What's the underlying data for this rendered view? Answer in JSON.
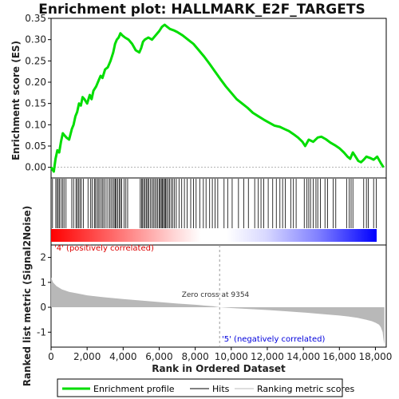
{
  "chart_data": {
    "type": "line",
    "title": "Enrichment plot: HALLMARK_E2F_TARGETS",
    "xlabel": "Rank in Ordered Dataset",
    "es_ylabel": "Enrichment score (ES)",
    "metric_ylabel": "Ranked list metric (Signal2Noise)",
    "xlim": [
      0,
      18600
    ],
    "es_ylim": [
      -0.025,
      0.35
    ],
    "metric_ylim": [
      -1.6,
      2.5
    ],
    "x_ticks": [
      0,
      2000,
      4000,
      6000,
      8000,
      10000,
      12000,
      14000,
      16000,
      18000
    ],
    "x_tick_labels": [
      "0",
      "2,000",
      "4,000",
      "6,000",
      "8,000",
      "10,000",
      "12,000",
      "14,000",
      "16,000",
      "18,000"
    ],
    "es_ticks": [
      0.0,
      0.05,
      0.1,
      0.15,
      0.2,
      0.25,
      0.3,
      0.35
    ],
    "es_tick_labels": [
      "0.00",
      "0.05",
      "0.10",
      "0.15",
      "0.20",
      "0.25",
      "0.30",
      "0.35"
    ],
    "metric_ticks": [
      -1,
      0,
      1,
      2
    ],
    "metric_tick_labels": [
      "-1",
      "0",
      "1",
      "2"
    ],
    "grid": false,
    "legend_position": "bottom",
    "colors": {
      "enrichment": "#00dd00",
      "hits": "#000000",
      "metric_fill": "#b8b8b8",
      "positive_label": "#dd0000",
      "negative_label": "#0000dd",
      "zero_cross": "#999999"
    },
    "series": [
      {
        "name": "Enrichment profile",
        "x": [
          0,
          150,
          250,
          350,
          450,
          550,
          650,
          750,
          850,
          1000,
          1150,
          1250,
          1350,
          1450,
          1550,
          1650,
          1750,
          1850,
          2000,
          2150,
          2250,
          2350,
          2500,
          2650,
          2750,
          2850,
          3000,
          3150,
          3300,
          3450,
          3550,
          3650,
          3750,
          3850,
          3950,
          4100,
          4300,
          4500,
          4700,
          4900,
          5000,
          5100,
          5200,
          5400,
          5600,
          5800,
          6000,
          6150,
          6300,
          6450,
          6600,
          6800,
          7000,
          7300,
          7600,
          7900,
          8200,
          8500,
          8800,
          9100,
          9400,
          9700,
          10000,
          10300,
          10600,
          10900,
          11200,
          11500,
          11800,
          12100,
          12400,
          12700,
          12950,
          13200,
          13450,
          13700,
          13950,
          14100,
          14300,
          14550,
          14800,
          15000,
          15250,
          15500,
          15750,
          16000,
          16250,
          16450,
          16600,
          16750,
          16900,
          17050,
          17200,
          17350,
          17500,
          17700,
          17900,
          18100,
          18300,
          18450
        ],
        "es": [
          0.0,
          -0.01,
          0.02,
          0.04,
          0.035,
          0.06,
          0.08,
          0.075,
          0.07,
          0.065,
          0.09,
          0.1,
          0.12,
          0.13,
          0.15,
          0.145,
          0.165,
          0.16,
          0.15,
          0.17,
          0.16,
          0.18,
          0.19,
          0.205,
          0.215,
          0.21,
          0.23,
          0.235,
          0.25,
          0.27,
          0.29,
          0.3,
          0.305,
          0.315,
          0.31,
          0.305,
          0.3,
          0.29,
          0.275,
          0.27,
          0.28,
          0.295,
          0.3,
          0.305,
          0.3,
          0.31,
          0.32,
          0.33,
          0.335,
          0.33,
          0.325,
          0.322,
          0.318,
          0.31,
          0.3,
          0.29,
          0.275,
          0.26,
          0.243,
          0.225,
          0.207,
          0.19,
          0.175,
          0.16,
          0.15,
          0.14,
          0.128,
          0.12,
          0.112,
          0.105,
          0.098,
          0.095,
          0.09,
          0.085,
          0.078,
          0.07,
          0.06,
          0.05,
          0.065,
          0.06,
          0.07,
          0.072,
          0.066,
          0.058,
          0.052,
          0.045,
          0.035,
          0.025,
          0.02,
          0.035,
          0.025,
          0.015,
          0.012,
          0.018,
          0.025,
          0.022,
          0.018,
          0.025,
          0.01,
          0.0
        ]
      },
      {
        "name": "Hits",
        "positions": [
          80,
          260,
          330,
          400,
          470,
          560,
          650,
          720,
          830,
          1150,
          1250,
          1380,
          1450,
          1520,
          1600,
          1680,
          1800,
          2050,
          2200,
          2280,
          2400,
          2450,
          2550,
          2620,
          2700,
          2790,
          2870,
          2950,
          3050,
          3150,
          3250,
          3330,
          3420,
          3500,
          3560,
          3620,
          3700,
          3780,
          3850,
          3920,
          4050,
          4150,
          4250,
          4950,
          5020,
          5080,
          5150,
          5220,
          5300,
          5360,
          5430,
          5520,
          5600,
          5680,
          5760,
          5840,
          5920,
          6000,
          6060,
          6120,
          6180,
          6240,
          6300,
          6360,
          6420,
          6500,
          6580,
          6660,
          6750,
          6850,
          6950,
          7100,
          7250,
          7400,
          7550,
          7750,
          7900,
          8050,
          8250,
          8450,
          8600,
          8800,
          8950,
          9100,
          9250,
          9600,
          9800,
          10050,
          10400,
          10700,
          10950,
          11300,
          11500,
          11650,
          11800,
          12050,
          12300,
          12500,
          12700,
          12850,
          13000,
          13300,
          13450,
          13600,
          14050,
          14200,
          14300,
          14400,
          14550,
          14700,
          14800,
          14950,
          15200,
          15350,
          15650,
          15800,
          16400,
          16550,
          16650,
          16750,
          17350,
          17500,
          17600,
          17900,
          18050
        ]
      },
      {
        "name": "Ranking metric scores",
        "x": [
          0,
          100,
          300,
          600,
          1000,
          1500,
          2000,
          3000,
          4000,
          5000,
          6000,
          7000,
          8000,
          9000,
          9354,
          10000,
          11000,
          12000,
          13000,
          14000,
          15000,
          16000,
          16500,
          17000,
          17500,
          17800,
          18000,
          18200,
          18300,
          18400,
          18450,
          18500
        ],
        "metric": [
          1.2,
          1.0,
          0.85,
          0.72,
          0.62,
          0.55,
          0.48,
          0.4,
          0.33,
          0.27,
          0.21,
          0.15,
          0.1,
          0.04,
          0.0,
          -0.03,
          -0.07,
          -0.11,
          -0.16,
          -0.21,
          -0.27,
          -0.33,
          -0.37,
          -0.42,
          -0.5,
          -0.56,
          -0.62,
          -0.7,
          -0.8,
          -1.0,
          -1.3,
          -1.5
        ]
      }
    ],
    "annotations": {
      "positive": "'4' (positively correlated)",
      "negative": "'5' (negatively correlated)",
      "zero_cross": "Zero cross at 9354",
      "zero_cross_x": 9354
    },
    "legend": {
      "enrichment": "Enrichment profile",
      "hits": "Hits",
      "metric": "Ranking metric scores"
    }
  }
}
